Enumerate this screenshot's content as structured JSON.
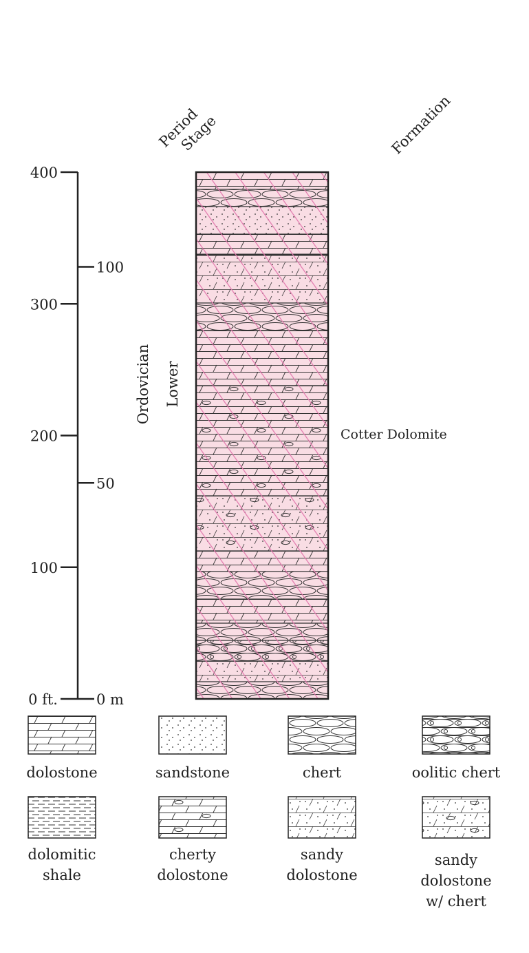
{
  "headers": {
    "period": "Period",
    "stage": "Stage",
    "formation": "Formation"
  },
  "scale": {
    "feet_ticks": [
      {
        "value": 400,
        "label": "400"
      },
      {
        "value": 300,
        "label": "300"
      },
      {
        "value": 200,
        "label": "200"
      },
      {
        "value": 100,
        "label": "100"
      },
      {
        "value": 0,
        "label": "0 ft."
      }
    ],
    "meter_ticks": [
      {
        "value": 100,
        "label": "100"
      },
      {
        "value": 50,
        "label": "50"
      },
      {
        "value": 0,
        "label": "0 m"
      }
    ]
  },
  "column": {
    "period": "Ordovician",
    "stage": "Lower",
    "formation": "Cotter Dolomite"
  },
  "legend": [
    {
      "lines": [
        "dolostone"
      ]
    },
    {
      "lines": [
        "sandstone"
      ]
    },
    {
      "lines": [
        "chert"
      ]
    },
    {
      "lines": [
        "oolitic chert"
      ]
    },
    {
      "lines": [
        "dolomitic",
        "shale"
      ]
    },
    {
      "lines": [
        "cherty",
        "dolostone"
      ]
    },
    {
      "lines": [
        "sandy",
        "dolostone"
      ]
    },
    {
      "lines": [
        "sandy",
        "dolostone",
        "w/ chert"
      ]
    }
  ]
}
